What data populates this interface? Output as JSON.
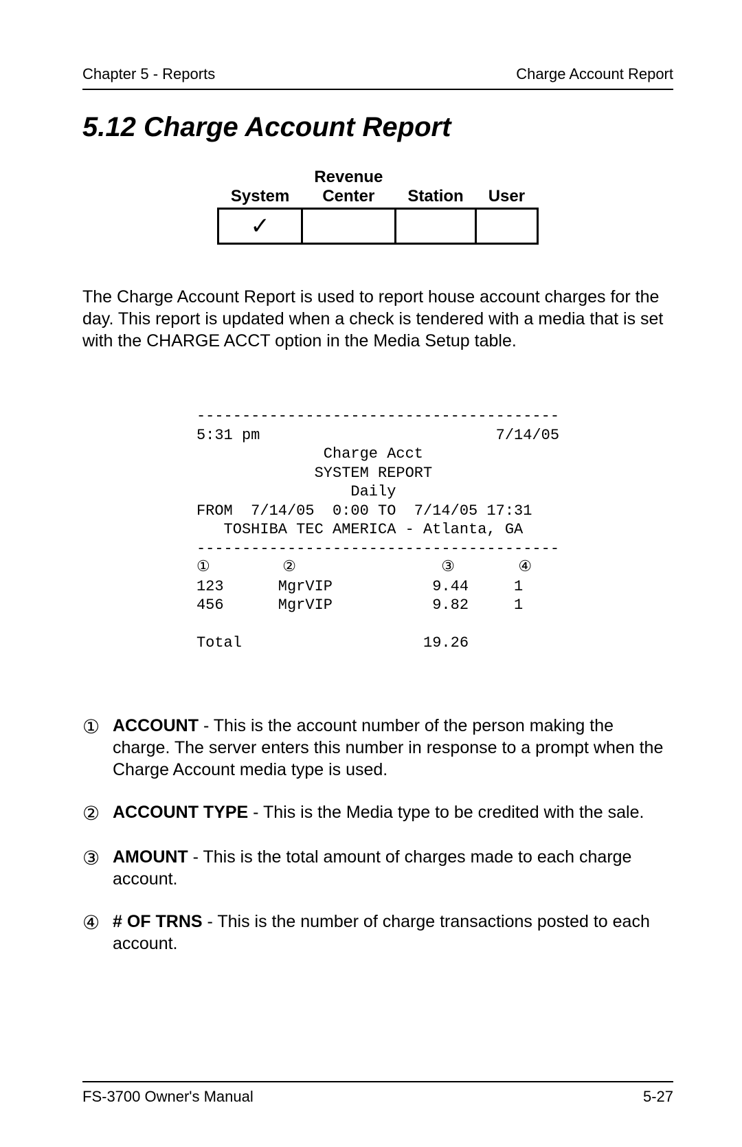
{
  "header": {
    "left": "Chapter 5 - Reports",
    "right": "Charge Account Report"
  },
  "section_title": "5.12   Charge Account Report",
  "scope_table": {
    "headers": {
      "system": "System",
      "revenue_top": "Revenue",
      "revenue_bottom": "Center",
      "station": "Station",
      "user": "User"
    },
    "check_mark": "✓",
    "cells": {
      "system": "✓",
      "revenue": "",
      "station": "",
      "user": ""
    }
  },
  "intro": "The Charge Account Report is used to report house account charges for the day.  This report is updated when a check is tendered with a media that is set with the CHARGE ACCT option in the Media Setup table.",
  "report": {
    "sep": "----------------------------------------",
    "time": "5:31 pm",
    "date": "7/14/05",
    "title1": "Charge Acct",
    "title2": "SYSTEM REPORT",
    "title3": "Daily",
    "range": "FROM  7/14/05  0:00 TO  7/14/05 17:31",
    "location": "TOSHIBA TEC AMERICA - Atlanta, GA",
    "markers": {
      "c1": "①",
      "c2": "②",
      "c3": "③",
      "c4": "④"
    },
    "rows": [
      {
        "acct": "123",
        "type": "MgrVIP",
        "amount": "9.44",
        "trns": "1"
      },
      {
        "acct": "456",
        "type": "MgrVIP",
        "amount": "9.82",
        "trns": "1"
      }
    ],
    "total_label": "Total",
    "total_value": "19.26"
  },
  "defs": [
    {
      "marker": "①",
      "term": "ACCOUNT",
      "text": " - This is the account number of the person making the charge.  The server enters this number in response to a prompt when the Charge Account media type is used."
    },
    {
      "marker": "②",
      "term": "ACCOUNT TYPE",
      "text": " - This is the Media type to be credited with the sale."
    },
    {
      "marker": "③",
      "term": "AMOUNT",
      "text": " - This is the total amount of charges made to each charge account."
    },
    {
      "marker": "④",
      "term": " # OF TRNS",
      "text": " - This is the number of charge transactions posted to each account."
    }
  ],
  "footer": {
    "left": "FS-3700 Owner's Manual",
    "right": "5-27"
  }
}
